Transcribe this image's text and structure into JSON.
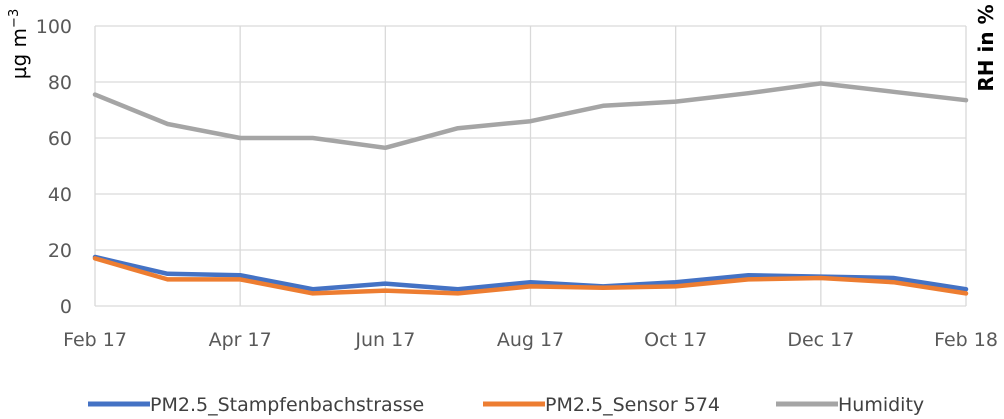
{
  "chart_data": {
    "type": "line",
    "x": [
      "Feb 17",
      "Mar 17",
      "Apr 17",
      "May 17",
      "Jun 17",
      "Jul 17",
      "Aug 17",
      "Sep 17",
      "Oct 17",
      "Nov 17",
      "Dec 17",
      "Jan 18",
      "Feb 18"
    ],
    "xticklabels": [
      "Feb 17",
      "Apr 17",
      "Jun 17",
      "Aug 17",
      "Oct 17",
      "Dec 17",
      "Feb 18"
    ],
    "yticks": [
      "0",
      "20",
      "40",
      "60",
      "80",
      "100"
    ],
    "ylim": [
      0,
      100
    ],
    "ylabel_left": "µg m",
    "ylabel_left_superscript": "−3",
    "ylabel_right": "RH in %",
    "grid": true,
    "legend_position": "bottom",
    "series": [
      {
        "name": "PM2.5_Stampfenbachstrasse",
        "color": "#4472C4",
        "values": [
          17.5,
          11.5,
          11,
          6,
          8,
          6,
          8.5,
          7,
          8.5,
          11,
          10.5,
          10,
          6
        ]
      },
      {
        "name": "PM2.5_Sensor 574",
        "color": "#ED7D31",
        "values": [
          17,
          9.5,
          9.5,
          4.5,
          5.5,
          4.5,
          7,
          6.5,
          7,
          9.5,
          10,
          8.5,
          4.5
        ]
      },
      {
        "name": "Humidity",
        "color": "#A5A5A5",
        "values": [
          75.5,
          65,
          60,
          60,
          56.5,
          63.5,
          66,
          71.5,
          73,
          76,
          79.5,
          76.5,
          73.5
        ]
      }
    ]
  }
}
